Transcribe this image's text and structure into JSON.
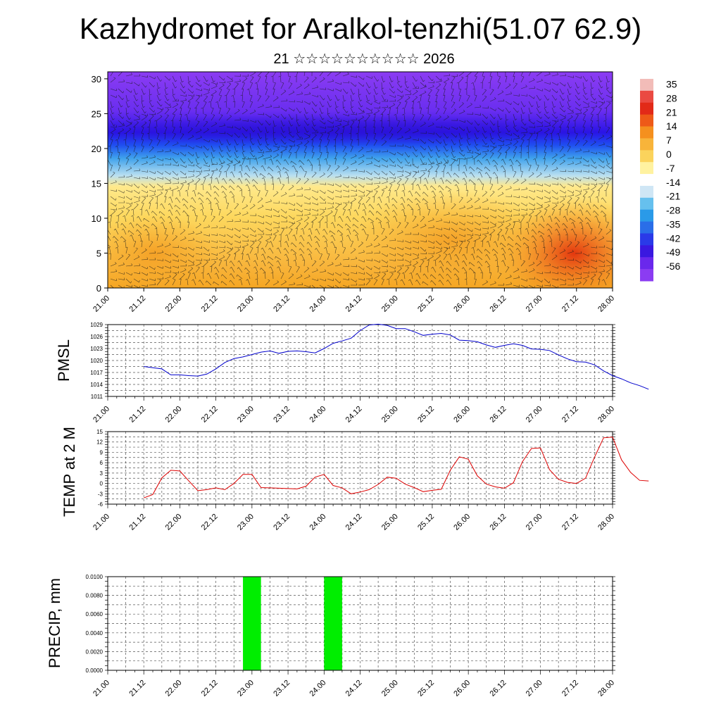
{
  "title": "Kazhydromet for Aralkol-tenzhi(51.07 62.9)",
  "subtitle": "21 ☆☆☆☆☆☆☆☆☆☆ 2026",
  "colors": {
    "pmsl_line": "#0000cc",
    "temp_line": "#dd0000",
    "precip_bar": "#00ee00",
    "grid": "#555555"
  },
  "chart_data": [
    {
      "type": "heatmap",
      "title": "",
      "xlabel": "",
      "ylabel": "",
      "x_tick_labels": [
        "21.00",
        "21.12",
        "22.00",
        "22.12",
        "23.00",
        "23.12",
        "24.00",
        "24.12",
        "25.00",
        "25.12",
        "26.00",
        "26.12",
        "27.00",
        "27.12",
        "28.00"
      ],
      "y_tick_labels": [
        "0",
        "5",
        "10",
        "15",
        "20",
        "25",
        "30"
      ],
      "ylim": [
        0,
        31
      ],
      "colorbar_labels": [
        "35",
        "28",
        "21",
        "14",
        "7",
        "0",
        "-7",
        "-14",
        "-21",
        "-28",
        "-35",
        "-42",
        "-49",
        "-56"
      ],
      "colorbar_range": [
        -63,
        38
      ],
      "overlay": "wind barbs"
    },
    {
      "type": "line",
      "ylabel": "PMSL",
      "ylim": [
        1011,
        1029
      ],
      "y_tick_labels": [
        "1011",
        "1014",
        "1017",
        "1020",
        "1023",
        "1026",
        "1029"
      ],
      "x_tick_labels": [
        "21.00",
        "21.12",
        "22.00",
        "22.12",
        "23.00",
        "23.12",
        "24.00",
        "24.12",
        "25.00",
        "25.12",
        "26.00",
        "26.12",
        "27.00",
        "27.12",
        "28.00"
      ],
      "x_step_hours": 3,
      "values": [
        1018.5,
        1018.2,
        1017.9,
        1016.4,
        1016.4,
        1016.2,
        1016.1,
        1016.6,
        1017.9,
        1019.5,
        1020.5,
        1020.9,
        1021.5,
        1022.1,
        1022.4,
        1021.8,
        1022.3,
        1022.4,
        1022.2,
        1021.9,
        1023.0,
        1024.3,
        1024.9,
        1025.6,
        1027.5,
        1028.9,
        1029.1,
        1028.8,
        1028.0,
        1028.0,
        1027.2,
        1026.3,
        1026.6,
        1026.8,
        1026.4,
        1025.1,
        1025.0,
        1024.7,
        1023.9,
        1023.3,
        1023.8,
        1024.2,
        1023.8,
        1022.9,
        1022.8,
        1022.5,
        1021.4,
        1020.4,
        1019.7,
        1019.6,
        1018.9,
        1017.4,
        1016.2,
        1015.4,
        1014.4,
        1013.7,
        1012.8
      ]
    },
    {
      "type": "line",
      "ylabel": "TEMP at 2 M",
      "ylim": [
        -6,
        15
      ],
      "y_tick_labels": [
        "-6",
        "-3",
        "0",
        "3",
        "6",
        "9",
        "12",
        "15"
      ],
      "x_tick_labels": [
        "21.00",
        "21.12",
        "22.00",
        "22.12",
        "23.00",
        "23.12",
        "24.00",
        "24.12",
        "25.00",
        "25.12",
        "26.00",
        "26.12",
        "27.00",
        "27.12",
        "28.00"
      ],
      "x_step_hours": 3,
      "values": [
        -4.2,
        -3.2,
        1.6,
        3.8,
        3.6,
        0.7,
        -2.1,
        -1.8,
        -1.3,
        -1.8,
        0.0,
        2.6,
        2.6,
        -1.2,
        -1.3,
        -1.4,
        -1.5,
        -1.6,
        -0.8,
        1.8,
        2.6,
        -0.6,
        -1.3,
        -3.0,
        -2.5,
        -1.8,
        -0.3,
        1.8,
        1.5,
        -0.2,
        -1.2,
        -2.4,
        -2.0,
        -1.7,
        3.8,
        7.7,
        7.0,
        2.2,
        -0.2,
        -1.0,
        -1.4,
        0.2,
        6.3,
        10.1,
        10.3,
        4.0,
        1.2,
        0.3,
        0.0,
        1.5,
        7.6,
        13.2,
        13.4,
        6.8,
        3.2,
        0.9,
        0.7
      ]
    },
    {
      "type": "bar",
      "ylabel": "PRECIP, mm",
      "ylim": [
        0,
        0.01
      ],
      "y_tick_labels": [
        "0.0000",
        "0.0020",
        "0.0040",
        "0.0060",
        "0.0080",
        "0.0100"
      ],
      "x_tick_labels": [
        "21.00",
        "21.12",
        "22.00",
        "22.12",
        "23.00",
        "23.12",
        "24.00",
        "24.12",
        "25.00",
        "25.12",
        "26.00",
        "26.12",
        "27.00",
        "27.12",
        "28.00"
      ],
      "bars": [
        {
          "x_hours_from": 45,
          "x_hours_to": 51,
          "value": 0.01
        },
        {
          "x_hours_from": 72,
          "x_hours_to": 78,
          "value": 0.01
        }
      ]
    }
  ]
}
